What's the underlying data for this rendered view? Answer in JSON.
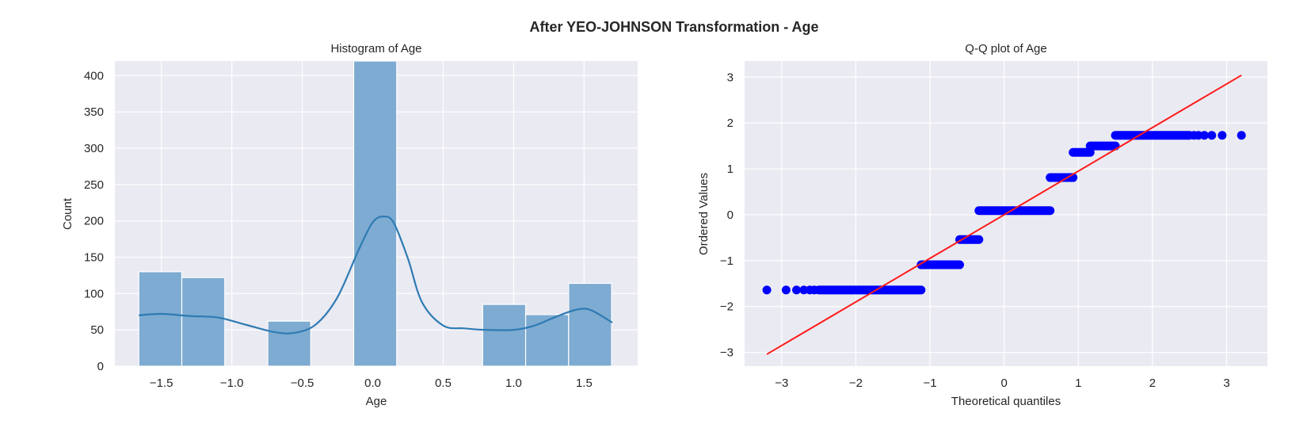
{
  "figure": {
    "title": "After YEO-JOHNSON Transformation - Age"
  },
  "chart_data": [
    {
      "type": "bar",
      "subtype": "histogram_with_kde",
      "title": "Histogram of Age",
      "xlabel": "Age",
      "ylabel": "Count",
      "xlim": [
        -1.83,
        1.88
      ],
      "ylim": [
        0,
        420
      ],
      "xticks": [
        -1.5,
        -1.0,
        -0.5,
        0.0,
        0.5,
        1.0,
        1.5
      ],
      "xtick_labels": [
        "−1.5",
        "−1.0",
        "−0.5",
        "0.0",
        "0.5",
        "1.0",
        "1.5"
      ],
      "yticks": [
        0,
        50,
        100,
        150,
        200,
        250,
        300,
        350,
        400
      ],
      "ytick_labels": [
        "0",
        "50",
        "100",
        "150",
        "200",
        "250",
        "300",
        "350",
        "400"
      ],
      "bins": [
        {
          "x0": -1.66,
          "x1": -1.355,
          "count": 130
        },
        {
          "x0": -1.355,
          "x1": -1.05,
          "count": 122
        },
        {
          "x0": -1.05,
          "x1": -0.745,
          "count": 0
        },
        {
          "x0": -0.745,
          "x1": -0.44,
          "count": 62
        },
        {
          "x0": -0.44,
          "x1": -0.135,
          "count": 0
        },
        {
          "x0": -0.135,
          "x1": 0.17,
          "count": 420
        },
        {
          "x0": 0.17,
          "x1": 0.475,
          "count": 0
        },
        {
          "x0": 0.475,
          "x1": 0.78,
          "count": 0
        },
        {
          "x0": 0.78,
          "x1": 1.085,
          "count": 85
        },
        {
          "x0": 1.085,
          "x1": 1.39,
          "count": 71
        },
        {
          "x0": 1.39,
          "x1": 1.695,
          "count": 114
        }
      ],
      "kde": {
        "x": [
          -1.66,
          -1.5,
          -1.3,
          -1.1,
          -0.9,
          -0.7,
          -0.55,
          -0.4,
          -0.25,
          -0.1,
          0.0,
          0.08,
          0.15,
          0.25,
          0.35,
          0.5,
          0.65,
          0.8,
          1.0,
          1.15,
          1.3,
          1.45,
          1.55,
          1.7
        ],
        "y": [
          70,
          72,
          69,
          67,
          57,
          47,
          46,
          58,
          95,
          160,
          198,
          206,
          197,
          148,
          88,
          56,
          52,
          50,
          50,
          56,
          68,
          78,
          77,
          60
        ]
      },
      "colors": {
        "bar": "#7eabd1",
        "kde": "#2e7bb4",
        "background": "#eaeaf2"
      },
      "grid": true,
      "legend": "none"
    },
    {
      "type": "scatter",
      "subtype": "qq_plot",
      "title": "Q-Q plot of Age",
      "xlabel": "Theoretical quantiles",
      "ylabel": "Ordered Values",
      "xlim": [
        -3.5,
        3.55
      ],
      "ylim": [
        -3.3,
        3.35
      ],
      "xticks": [
        -3,
        -2,
        -1,
        0,
        1,
        2,
        3
      ],
      "xtick_labels": [
        "−3",
        "−2",
        "−1",
        "0",
        "1",
        "2",
        "3"
      ],
      "yticks": [
        -3,
        -2,
        -1,
        0,
        1,
        2,
        3
      ],
      "ytick_labels": [
        "−3",
        "−2",
        "−1",
        "0",
        "1",
        "2",
        "3"
      ],
      "groups": [
        {
          "y": -1.64,
          "x_from": -3.2,
          "x_to": -1.12
        },
        {
          "y": -1.09,
          "x_from": -1.12,
          "x_to": -0.6
        },
        {
          "y": -0.54,
          "x_from": -0.6,
          "x_to": -0.34
        },
        {
          "y": 0.09,
          "x_from": -0.34,
          "x_to": 0.62
        },
        {
          "y": 0.81,
          "x_from": 0.62,
          "x_to": 0.93
        },
        {
          "y": 1.36,
          "x_from": 0.93,
          "x_to": 1.16
        },
        {
          "y": 1.5,
          "x_from": 1.16,
          "x_to": 1.5
        },
        {
          "y": 1.73,
          "x_from": 1.5,
          "x_to": 3.2
        }
      ],
      "tail_points": [
        {
          "x": -3.2,
          "y": -1.64
        },
        {
          "x": -2.94,
          "y": -1.64
        },
        {
          "x": -2.8,
          "y": -1.64
        },
        {
          "x": -2.7,
          "y": -1.64
        },
        {
          "x": -2.62,
          "y": -1.64
        },
        {
          "x": -2.56,
          "y": -1.64
        },
        {
          "x": 2.56,
          "y": 1.73
        },
        {
          "x": 2.62,
          "y": 1.73
        },
        {
          "x": 2.7,
          "y": 1.73
        },
        {
          "x": 2.8,
          "y": 1.73
        },
        {
          "x": 2.94,
          "y": 1.73
        },
        {
          "x": 3.2,
          "y": 1.73
        }
      ],
      "fit_line": {
        "slope": 0.95,
        "intercept": 0.0,
        "x_range": [
          -3.2,
          3.2
        ]
      },
      "colors": {
        "points": "#0000ff",
        "line": "#ff1a1a",
        "background": "#eaeaf2"
      },
      "grid": true,
      "legend": "none"
    }
  ]
}
